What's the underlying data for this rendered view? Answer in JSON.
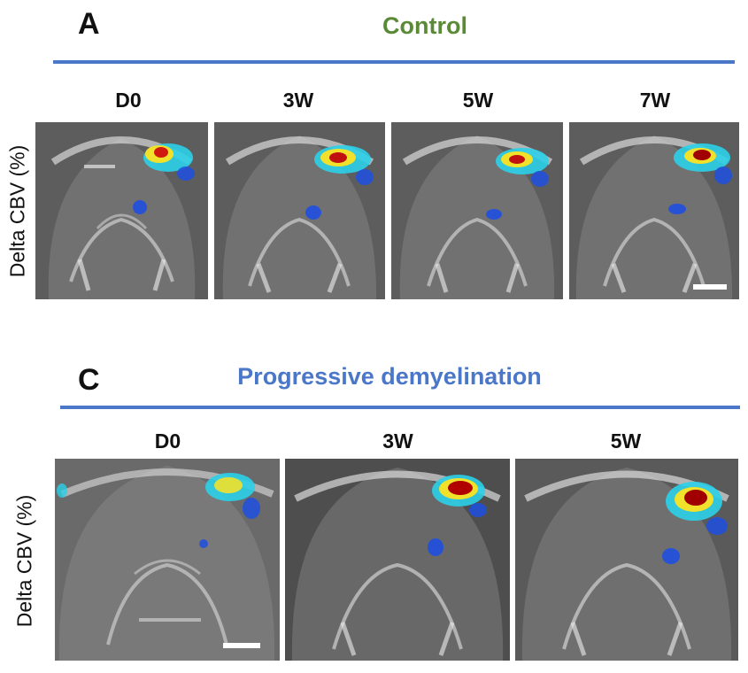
{
  "panel_a": {
    "letter": "A",
    "title": "Control",
    "title_color": "#5b8a37",
    "rule_color": "#4a77c8",
    "ylabel": "Delta CBV (%)",
    "timepoints": [
      "D0",
      "3W",
      "5W",
      "7W"
    ]
  },
  "panel_c": {
    "letter": "C",
    "title": "Progressive demyelination",
    "title_color": "#4a77c8",
    "rule_color": "#4a77c8",
    "ylabel": "Delta CBV (%)",
    "timepoints": [
      "D0",
      "3W",
      "5W"
    ]
  },
  "colors": {
    "activation_low": "#1f4fe0",
    "activation_mid": "#2bd0e8",
    "activation_high": "#f2e12a",
    "activation_peak": "#a00000",
    "scan_background": "#5d5d5d"
  }
}
